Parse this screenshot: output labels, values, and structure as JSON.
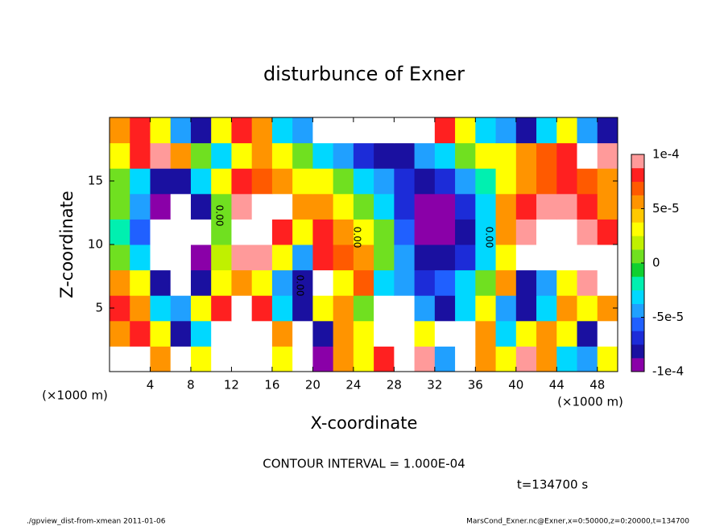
{
  "chart_data": {
    "type": "heatmap",
    "title": "disturbunce of Exner",
    "xlabel": "X-coordinate",
    "ylabel": "Z-coordinate",
    "x_unit": "(×1000 m)",
    "y_unit": "(×1000 m)",
    "contour_interval": "CONTOUR INTERVAL = 1.000E-04",
    "time_label": "t=134700 s",
    "footer_left": "./gpview_dist-from-xmean  2011-01-06",
    "footer_right": "MarsCond_Exner.nc@Exner,x=0:50000,z=0:20000,t=134700",
    "contour_labels": [
      "0.00",
      "0.00",
      "0.00",
      "0.00"
    ],
    "xlim": [
      0,
      50
    ],
    "ylim": [
      0,
      20
    ],
    "xticks": [
      4,
      8,
      12,
      16,
      20,
      24,
      28,
      32,
      36,
      40,
      44,
      48
    ],
    "yticks": [
      5,
      10,
      15
    ],
    "clim": [
      -0.0001,
      0.0001
    ],
    "cticks": [
      {
        "value": 0.0001,
        "label": "1e-4"
      },
      {
        "value": 5e-05,
        "label": "5e-5"
      },
      0,
      {
        "value": -5e-05,
        "label": "-5e-5"
      },
      {
        "value": -0.0001,
        "label": "-1e-4"
      }
    ],
    "colors": [
      "#8a00a8",
      "#1a10a0",
      "#1c2cd8",
      "#2060ff",
      "#20a0ff",
      "#00d8ff",
      "#00f0b0",
      "#10d030",
      "#70e020",
      "#c0f000",
      "#ffff00",
      "#ffc800",
      "#ff9400",
      "#ff5a00",
      "#ff2020",
      "#ff9a9a"
    ],
    "out_of_range_color": "#ffffff",
    "x": [
      1,
      3,
      5,
      7,
      9,
      11,
      13,
      15,
      17,
      19,
      21,
      23,
      25,
      27,
      29,
      31,
      33,
      35,
      37,
      39,
      41,
      43,
      45,
      47,
      49
    ],
    "y": [
      1,
      3,
      5,
      7,
      9,
      11,
      13,
      15,
      17,
      19
    ],
    "z": [
      [
        0.00015,
        0.00012,
        5e-05,
        -0.00015,
        3e-05,
        0.00015,
        0.00015,
        0.00015,
        3e-05,
        -0.00015,
        -0.0001,
        5e-05,
        3e-05,
        8e-05,
        0.00015,
        0.0001,
        -5e-05,
        0.00015,
        5e-05,
        3e-05,
        0.0001,
        5e-05,
        -3e-05,
        -5e-05,
        3e-05
      ],
      [
        5e-05,
        8e-05,
        3e-05,
        -8e-05,
        -3e-05,
        0.00015,
        0.00015,
        0.00015,
        5e-05,
        -0.00015,
        -8e-05,
        5e-05,
        3e-05,
        0.00015,
        0.00015,
        3e-05,
        0.00015,
        0.00015,
        5e-05,
        -3e-05,
        3e-05,
        5e-05,
        3e-05,
        -8e-05,
        -0.00015
      ],
      [
        8e-05,
        5e-05,
        -3e-05,
        -5e-05,
        3e-05,
        8e-05,
        0.00015,
        8e-05,
        -3e-05,
        -8e-05,
        3e-05,
        5e-05,
        0,
        0.00015,
        0.00015,
        -5e-05,
        -8e-05,
        -3e-05,
        3e-05,
        -5e-05,
        -8e-05,
        -3e-05,
        5e-05,
        3e-05,
        5e-05
      ],
      [
        5e-05,
        3e-05,
        -8e-05,
        -0.00015,
        -8e-05,
        3e-05,
        5e-05,
        3e-05,
        -5e-05,
        -8e-05,
        0.00015,
        3e-05,
        7e-05,
        -3e-05,
        -5e-05,
        -7e-05,
        -6e-05,
        -3e-05,
        0,
        5e-05,
        -8e-05,
        -5e-05,
        3e-05,
        0.0001,
        0.00015
      ],
      [
        0,
        -3e-05,
        -0.00015,
        -0.00015,
        -0.0001,
        2e-05,
        0.0001,
        0.0001,
        3e-05,
        -5e-05,
        8e-05,
        7e-05,
        5e-05,
        0,
        -5e-05,
        -8e-05,
        -8e-05,
        -7e-05,
        -3e-05,
        3e-05,
        0.00015,
        0.00015,
        0.00015,
        0.00015,
        0.00012
      ],
      [
        -2e-05,
        -6e-05,
        -0.00015,
        -0.00015,
        -0.00012,
        0,
        0.00012,
        0.00015,
        8e-05,
        3e-05,
        8e-05,
        5e-05,
        3e-05,
        0,
        -6e-05,
        -9e-05,
        -9e-05,
        -8e-05,
        -3e-05,
        5e-05,
        0.0001,
        0.00012,
        0.00012,
        0.0001,
        8e-05
      ],
      [
        0,
        -5e-05,
        -9e-05,
        -0.00012,
        -8e-05,
        0,
        0.0001,
        0.00015,
        0.00012,
        5e-05,
        5e-05,
        3e-05,
        0,
        -3e-05,
        -7e-05,
        -9e-05,
        -9e-05,
        -7e-05,
        -3e-05,
        5e-05,
        8e-05,
        0.0001,
        0.0001,
        8e-05,
        6e-05
      ],
      [
        0,
        -3e-05,
        -8e-05,
        -8e-05,
        -3e-05,
        3e-05,
        8e-05,
        7e-05,
        5e-05,
        3e-05,
        3e-05,
        0,
        -3e-05,
        -5e-05,
        -7e-05,
        -8e-05,
        -7e-05,
        -5e-05,
        -2e-05,
        3e-05,
        5e-05,
        7e-05,
        8e-05,
        7e-05,
        5e-05
      ],
      [
        3e-05,
        8e-05,
        0.0001,
        5e-05,
        0,
        -3e-05,
        3e-05,
        5e-05,
        3e-05,
        0,
        -3e-05,
        -5e-05,
        -7e-05,
        -8e-05,
        -8e-05,
        -5e-05,
        -3e-05,
        0,
        3e-05,
        3e-05,
        5e-05,
        7e-05,
        8e-05,
        0.00012,
        0.0001
      ],
      [
        5e-05,
        8e-05,
        3e-05,
        -5e-05,
        -8e-05,
        3e-05,
        8e-05,
        5e-05,
        -3e-05,
        -5e-05,
        0.00015,
        0.00015,
        0.00015,
        0.00015,
        0.00015,
        0.00015,
        8e-05,
        3e-05,
        -3e-05,
        -5e-05,
        -8e-05,
        -3e-05,
        3e-05,
        -5e-05,
        -8e-05
      ]
    ]
  }
}
